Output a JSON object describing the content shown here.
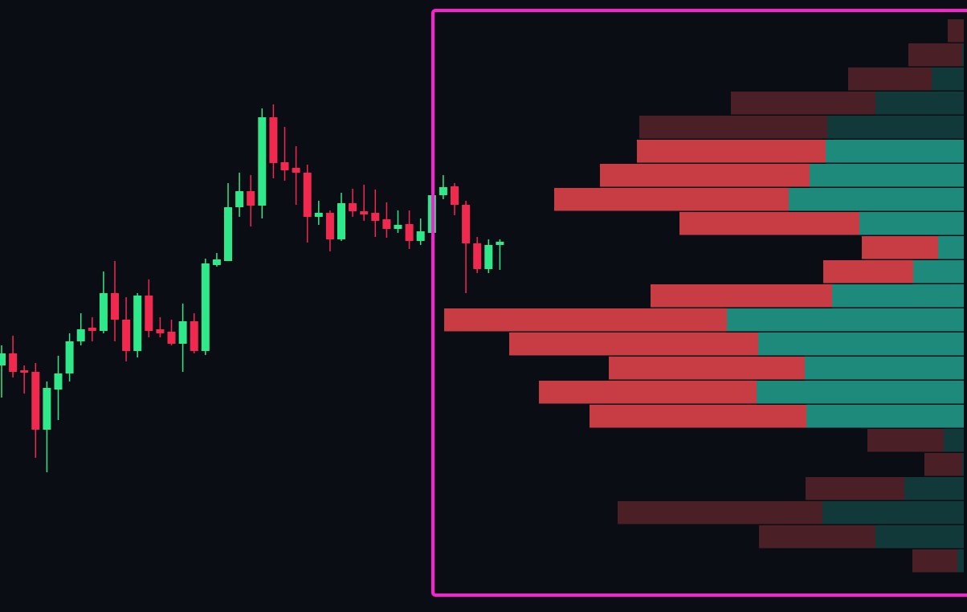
{
  "chart_data": {
    "type": "candlestick",
    "ylim": [
      0,
      762
    ],
    "up_color": "#2ee88a",
    "down_color": "#f2294e",
    "open": [
      307,
      322,
      301,
      299,
      227,
      277,
      297,
      337,
      354,
      350,
      397,
      364,
      325,
      394,
      352,
      349,
      334,
      362,
      325,
      432,
      437,
      504,
      524,
      506,
      616,
      560,
      553,
      547,
      492,
      497,
      464,
      509,
      499,
      497,
      489,
      477,
      483,
      462,
      472,
      519,
      530,
      507,
      459,
      427,
      457
    ],
    "high": [
      332,
      344,
      307,
      310,
      287,
      319,
      347,
      372,
      367,
      424,
      437,
      392,
      397,
      414,
      367,
      364,
      384,
      372,
      440,
      447,
      534,
      547,
      544,
      627,
      632,
      604,
      580,
      557,
      512,
      500,
      522,
      527,
      532,
      526,
      510,
      500,
      500,
      490,
      522,
      544,
      534,
      512,
      467,
      464,
      464
    ],
    "low": [
      267,
      292,
      272,
      192,
      174,
      239,
      287,
      332,
      337,
      347,
      337,
      312,
      317,
      342,
      342,
      332,
      299,
      322,
      320,
      430,
      437,
      492,
      480,
      490,
      540,
      537,
      507,
      460,
      482,
      449,
      462,
      492,
      487,
      467,
      466,
      472,
      452,
      457,
      472,
      514,
      494,
      397,
      422,
      422,
      426
    ],
    "close": [
      322,
      299,
      298,
      227,
      279,
      297,
      337,
      352,
      350,
      397,
      364,
      325,
      394,
      350,
      347,
      334,
      362,
      325,
      434,
      439,
      504,
      524,
      506,
      616,
      559,
      550,
      547,
      492,
      497,
      464,
      509,
      499,
      495,
      487,
      477,
      482,
      462,
      474,
      519,
      529,
      507,
      459,
      427,
      457,
      461
    ],
    "volume_profile": {
      "bins": [
        738,
        708,
        678,
        648,
        618,
        588,
        558,
        528,
        498,
        468,
        438,
        408,
        378,
        348,
        318,
        288,
        258,
        228,
        198,
        168,
        138,
        108,
        78,
        48
      ],
      "xlim": [
        0,
        660
      ],
      "value_area": [
        228,
        588
      ],
      "series": [
        {
          "name": "sell",
          "color": "#c83c44",
          "dim_color": "#4a1f25",
          "values": [
            20,
            67,
            104,
            180,
            234,
            235,
            261,
            292,
            224,
            95,
            112,
            226,
            352,
            310,
            244,
            271,
            270,
            95,
            47,
            123,
            255,
            145,
            56
          ]
        },
        {
          "name": "buy",
          "color": "#1e8a7c",
          "dim_color": "#12393a",
          "values": [
            0,
            2,
            40,
            110,
            170,
            172,
            192,
            218,
            130,
            32,
            63,
            164,
            295,
            256,
            198,
            258,
            196,
            25,
            2,
            74,
            176,
            110,
            8
          ]
        }
      ]
    },
    "box_color": "#ff1fd2"
  }
}
